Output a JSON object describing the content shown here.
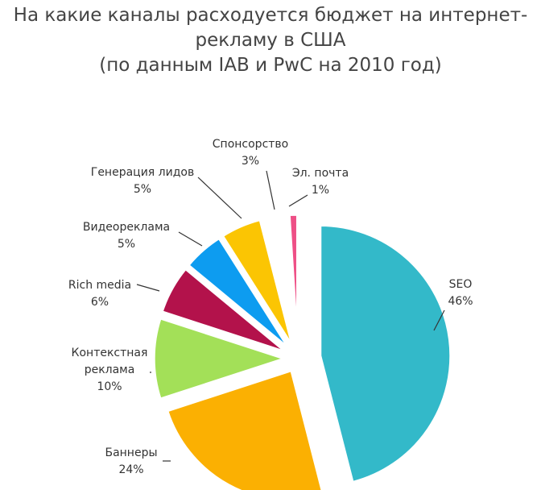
{
  "chart_data": {
    "type": "pie",
    "title": [
      "На какие каналы расходуется бюджет на интернет-",
      "рекламу в США",
      "(по данным IAB и PwC на 2010 год)"
    ],
    "slices": [
      {
        "label": [
          "SEO"
        ],
        "value": 46,
        "value_label": "46%",
        "color": "#33b9c9"
      },
      {
        "label": [
          "Баннеры"
        ],
        "value": 24,
        "value_label": "24%",
        "color": "#fbb002"
      },
      {
        "label": [
          "Контекстная",
          "реклама"
        ],
        "value": 10,
        "value_label": "10%",
        "color": "#a3e058"
      },
      {
        "label": [
          "Rich media"
        ],
        "value": 6,
        "value_label": "6%",
        "color": "#b3124b"
      },
      {
        "label": [
          "Видеореклама"
        ],
        "value": 5,
        "value_label": "5%",
        "color": "#0d9cf0"
      },
      {
        "label": [
          "Генерация лидов"
        ],
        "value": 5,
        "value_label": "5%",
        "color": "#fbc503"
      },
      {
        "label": [
          "Спонсорство"
        ],
        "value": 3,
        "value_label": "3%",
        "color": "#ffffff"
      },
      {
        "label": [
          "Эл. почта"
        ],
        "value": 1,
        "value_label": "1%",
        "color": "#ee4f86"
      }
    ]
  }
}
